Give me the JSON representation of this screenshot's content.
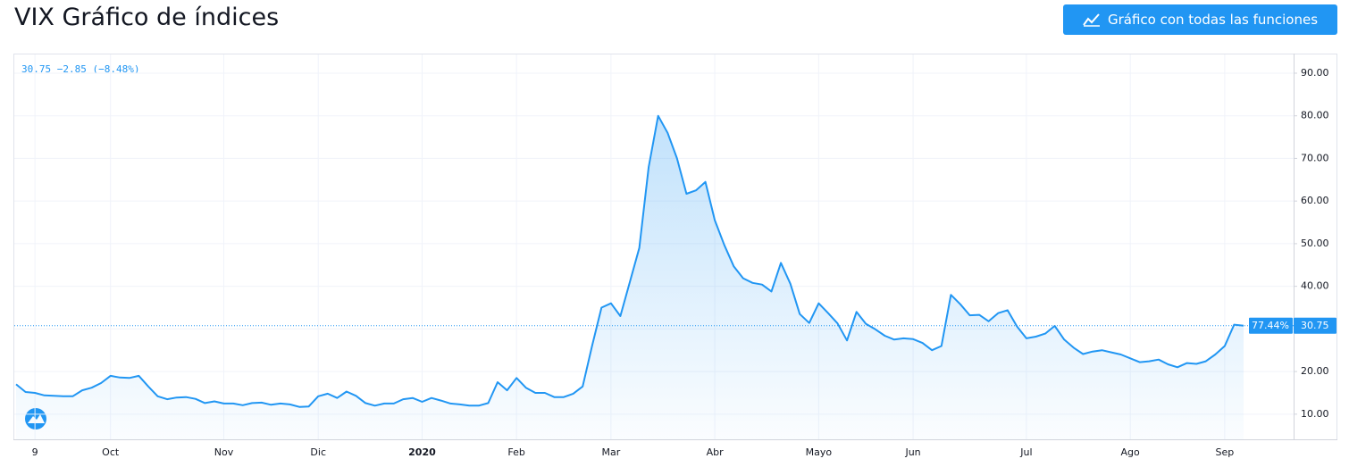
{
  "title": "VIX Gráfico de índices",
  "button": "Gráfico con todas las funciones",
  "chart_data": {
    "type": "area",
    "legend": "30.75 −2.85 (−8.48%)",
    "last_change_label": "77.44%",
    "last_value_label": "30.75",
    "color": "#2196f3",
    "grid": true,
    "ylim": [
      4.1,
      94.6
    ],
    "yticks": [
      {
        "value": 10,
        "label": "10.00"
      },
      {
        "value": 20,
        "label": "20.00"
      },
      {
        "value": 30,
        "label": "30.00"
      },
      {
        "value": 40,
        "label": "40.00"
      },
      {
        "value": 50,
        "label": "50.00"
      },
      {
        "value": 60,
        "label": "60.00"
      },
      {
        "value": 70,
        "label": "70.00"
      },
      {
        "value": 80,
        "label": "80.00"
      },
      {
        "value": 90,
        "label": "90.00"
      }
    ],
    "categories": [
      null,
      null,
      "9",
      null,
      null,
      null,
      null,
      null,
      null,
      null,
      "Oct",
      null,
      null,
      null,
      null,
      null,
      null,
      null,
      null,
      null,
      null,
      null,
      "Nov",
      null,
      null,
      null,
      null,
      null,
      null,
      null,
      null,
      null,
      "Dic",
      null,
      null,
      null,
      null,
      null,
      null,
      null,
      null,
      null,
      null,
      "2020",
      null,
      null,
      null,
      null,
      null,
      null,
      null,
      null,
      null,
      "Feb",
      null,
      null,
      null,
      null,
      null,
      null,
      null,
      null,
      null,
      "Mar",
      null,
      null,
      null,
      null,
      null,
      null,
      null,
      null,
      null,
      null,
      "Abr",
      null,
      null,
      null,
      null,
      null,
      null,
      null,
      null,
      null,
      null,
      "Mayo",
      null,
      null,
      null,
      null,
      null,
      null,
      null,
      null,
      null,
      "Jun",
      null,
      null,
      null,
      null,
      null,
      null,
      null,
      null,
      null,
      null,
      null,
      "Jul",
      null,
      null,
      null,
      null,
      null,
      null,
      null,
      null,
      null,
      null,
      "Ago",
      null,
      null,
      null,
      null,
      null,
      null,
      null,
      null,
      null,
      "Sep",
      null,
      null
    ],
    "values": [
      17,
      15.2,
      15,
      14.4,
      14.3,
      14.2,
      14.2,
      15.6,
      16.2,
      17.3,
      19,
      18.6,
      18.5,
      19,
      16.5,
      14.2,
      13.5,
      13.9,
      14,
      13.6,
      12.6,
      13,
      12.5,
      12.5,
      12.1,
      12.6,
      12.7,
      12.2,
      12.5,
      12.3,
      11.7,
      11.8,
      14.2,
      14.8,
      13.8,
      15.3,
      14.3,
      12.6,
      12,
      12.5,
      12.5,
      13.5,
      13.8,
      12.9,
      13.8,
      13.2,
      12.5,
      12.3,
      12,
      12,
      12.6,
      17.5,
      15.6,
      18.5,
      16.2,
      15,
      15,
      14,
      14,
      14.8,
      16.5,
      26,
      35,
      36,
      33,
      41,
      49,
      68,
      80,
      76,
      70,
      61.7,
      62.5,
      64.5,
      55.5,
      49.7,
      44.7,
      41.9,
      40.8,
      40.4,
      38.8,
      45.5,
      40.6,
      33.5,
      31.4,
      36,
      33.7,
      31.3,
      27.3,
      34,
      31.2,
      29.9,
      28.4,
      27.5,
      27.8,
      27.6,
      26.7,
      25,
      26,
      38,
      35.8,
      33.2,
      33.3,
      31.8,
      33.7,
      34.4,
      30.6,
      27.8,
      28.2,
      28.9,
      30.7,
      27.5,
      25.6,
      24.1,
      24.7,
      25,
      24.5,
      24,
      23.1,
      22.2,
      22.4,
      22.8,
      21.7,
      21,
      22,
      21.8,
      22.4,
      24,
      26,
      31,
      30.75
    ]
  }
}
